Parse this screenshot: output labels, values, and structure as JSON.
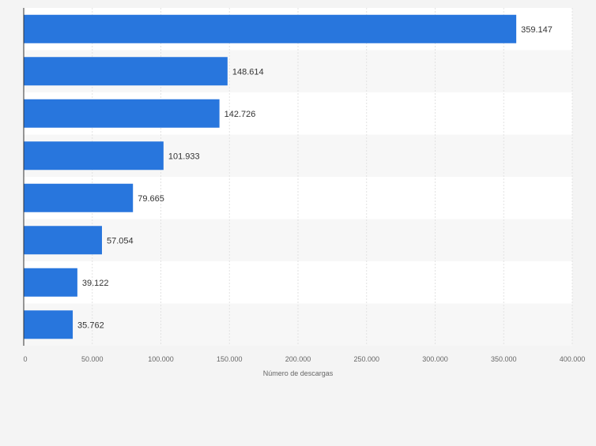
{
  "chart_data": {
    "type": "bar",
    "orientation": "horizontal",
    "categories": [
      "",
      "",
      "",
      "",
      "",
      "",
      "",
      ""
    ],
    "values": [
      359147,
      148614,
      142726,
      101933,
      79665,
      57054,
      39122,
      35762
    ],
    "value_labels": [
      "359.147",
      "148.614",
      "142.726",
      "101.933",
      "79.665",
      "57.054",
      "39.122",
      "35.762"
    ],
    "xlabel": "Número de descargas",
    "ylabel": "",
    "xlim": [
      0,
      400000
    ],
    "xticks": [
      0,
      50000,
      100000,
      150000,
      200000,
      250000,
      300000,
      350000,
      400000
    ],
    "xtick_labels": [
      "0",
      "50.000",
      "100.000",
      "150.000",
      "200.000",
      "250.000",
      "300.000",
      "350.000",
      "400.000"
    ],
    "grid": true,
    "legend": "none",
    "colors": {
      "bar": "#2876dd",
      "band_light": "#ffffff",
      "band_shaded": "#f7f7f7",
      "grid": "#e2e2e2",
      "axis": "#333333",
      "label": "#333333",
      "tick_label": "#666666",
      "background": "#f4f4f4"
    }
  }
}
